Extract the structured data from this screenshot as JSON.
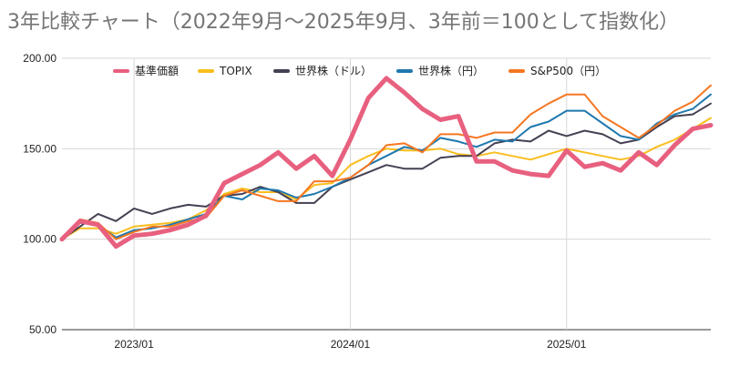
{
  "chart_data": {
    "type": "line",
    "title": "3年比較チャート（2022年9月〜2025年9月、3年前＝100として指数化）",
    "xlabel": "",
    "ylabel": "",
    "ylim": [
      50,
      200
    ],
    "yticks": [
      "50.00",
      "100.00",
      "150.00",
      "200.00"
    ],
    "xticks": [
      "2023/01",
      "2024/01",
      "2025/01"
    ],
    "grid": true,
    "legend_position": "top",
    "x": [
      "2022/09",
      "2022/10",
      "2022/11",
      "2022/12",
      "2023/01",
      "2023/02",
      "2023/03",
      "2023/04",
      "2023/05",
      "2023/06",
      "2023/07",
      "2023/08",
      "2023/09",
      "2023/10",
      "2023/11",
      "2023/12",
      "2024/01",
      "2024/02",
      "2024/03",
      "2024/04",
      "2024/05",
      "2024/06",
      "2024/07",
      "2024/08",
      "2024/09",
      "2024/10",
      "2024/11",
      "2024/12",
      "2025/01",
      "2025/02",
      "2025/03",
      "2025/04",
      "2025/05",
      "2025/06",
      "2025/07",
      "2025/08",
      "2025/09"
    ],
    "series": [
      {
        "name": "基準価額",
        "color": "#e8607f",
        "width": 5,
        "values": [
          100,
          110,
          108,
          96,
          102,
          103,
          105,
          108,
          113,
          131,
          136,
          141,
          148,
          139,
          146,
          135,
          155,
          178,
          189,
          181,
          172,
          166,
          168,
          143,
          143,
          138,
          136,
          135,
          149,
          140,
          142,
          138,
          148,
          141,
          152,
          161,
          163
        ]
      },
      {
        "name": "TOPIX",
        "color": "#f9be1e",
        "width": 2,
        "values": [
          100,
          106,
          106,
          103,
          107,
          108,
          109,
          111,
          116,
          125,
          128,
          126,
          126,
          122,
          130,
          131,
          141,
          146,
          150,
          149,
          149,
          150,
          147,
          146,
          148,
          146,
          144,
          147,
          150,
          148,
          146,
          144,
          146,
          151,
          155,
          161,
          167
        ]
      },
      {
        "name": "世界株（ドル）",
        "color": "#454052",
        "width": 2,
        "values": [
          100,
          107,
          114,
          110,
          117,
          114,
          117,
          119,
          118,
          124,
          125,
          129,
          126,
          120,
          120,
          129,
          133,
          137,
          141,
          139,
          139,
          145,
          146,
          146,
          153,
          155,
          154,
          160,
          157,
          160,
          158,
          153,
          155,
          162,
          168,
          169,
          175
        ]
      },
      {
        "name": "世界株（円）",
        "color": "#1f78ae",
        "width": 2,
        "values": [
          100,
          109,
          108,
          101,
          105,
          106,
          108,
          111,
          114,
          124,
          122,
          128,
          127,
          123,
          125,
          129,
          134,
          141,
          146,
          151,
          149,
          156,
          154,
          151,
          155,
          154,
          162,
          165,
          171,
          171,
          164,
          157,
          155,
          164,
          169,
          172,
          180
        ]
      },
      {
        "name": "S&P500（円）",
        "color": "#f57722",
        "width": 2,
        "values": [
          100,
          111,
          109,
          100,
          104,
          107,
          107,
          110,
          112,
          124,
          127,
          124,
          121,
          121,
          132,
          132,
          134,
          141,
          152,
          153,
          148,
          158,
          158,
          156,
          159,
          159,
          169,
          175,
          180,
          180,
          168,
          162,
          156,
          163,
          171,
          176,
          185
        ]
      }
    ]
  }
}
